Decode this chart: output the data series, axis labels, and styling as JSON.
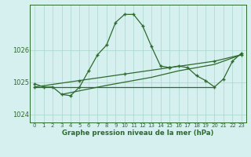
{
  "title": "Graphe pression niveau de la mer (hPa)",
  "bg_color": "#d6f0ef",
  "grid_color": "#a8d5cc",
  "line_color": "#2d6a2d",
  "xlim": [
    -0.5,
    23.5
  ],
  "ylim": [
    1023.75,
    1027.4
  ],
  "yticks": [
    1024,
    1025,
    1026
  ],
  "xticks": [
    0,
    1,
    2,
    3,
    4,
    5,
    6,
    7,
    8,
    9,
    10,
    11,
    12,
    13,
    14,
    15,
    16,
    17,
    18,
    19,
    20,
    21,
    22,
    23
  ],
  "series_main": {
    "x": [
      0,
      1,
      2,
      3,
      4,
      5,
      6,
      7,
      8,
      9,
      10,
      11,
      12,
      13,
      14,
      15,
      16,
      17,
      18,
      19,
      20,
      21,
      22,
      23
    ],
    "y": [
      1024.95,
      1024.85,
      1024.85,
      1024.62,
      1024.58,
      1024.85,
      1025.35,
      1025.85,
      1026.15,
      1026.85,
      1027.1,
      1027.1,
      1026.75,
      1026.1,
      1025.5,
      1025.45,
      1025.5,
      1025.45,
      1025.2,
      1025.05,
      1024.85,
      1025.1,
      1025.65,
      1025.9
    ]
  },
  "series_flat": {
    "x": [
      0,
      20
    ],
    "y": [
      1024.85,
      1024.85
    ]
  },
  "series_diag1": {
    "x": [
      0,
      5,
      10,
      15,
      20,
      23
    ],
    "y": [
      1024.85,
      1025.05,
      1025.25,
      1025.45,
      1025.65,
      1025.85
    ]
  },
  "series_lower": {
    "x": [
      0,
      1,
      2,
      3,
      4,
      5
    ],
    "y": [
      1024.95,
      1024.85,
      1024.85,
      1024.62,
      1024.55,
      1024.75
    ]
  },
  "series_diag2": {
    "x": [
      3,
      8,
      13,
      16,
      20,
      23
    ],
    "y": [
      1024.62,
      1024.9,
      1025.15,
      1025.35,
      1025.55,
      1025.85
    ]
  },
  "series_right": {
    "x": [
      15,
      16,
      17,
      18,
      19,
      20,
      21,
      22,
      23
    ],
    "y": [
      1025.45,
      1025.5,
      1025.45,
      1025.2,
      1025.05,
      1024.85,
      1025.1,
      1025.65,
      1025.9
    ]
  }
}
